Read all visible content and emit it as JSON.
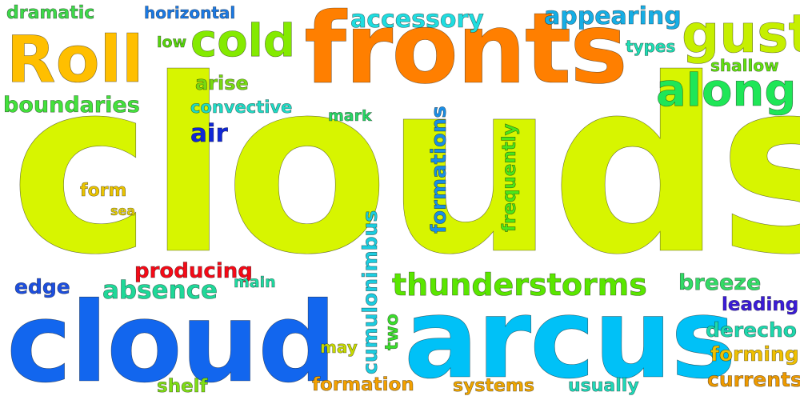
{
  "words": [
    {
      "id": "clouds",
      "text": "clouds",
      "color": "#d7f500"
    },
    {
      "id": "fronts",
      "text": "fronts",
      "color": "#ff7f00"
    },
    {
      "id": "roll",
      "text": "Roll",
      "color": "#ffbf00"
    },
    {
      "id": "cold",
      "text": "cold",
      "color": "#84ea00"
    },
    {
      "id": "gust",
      "text": "gust",
      "color": "#c6ef00"
    },
    {
      "id": "along",
      "text": "along",
      "color": "#1fe657"
    },
    {
      "id": "cloud",
      "text": "cloud",
      "color": "#1266ee"
    },
    {
      "id": "arcus",
      "text": "arcus",
      "color": "#00c1f7"
    },
    {
      "id": "thunderstorms",
      "text": "thunderstorms",
      "color": "#5ae600"
    },
    {
      "id": "accessory",
      "text": "accessory",
      "color": "#1fdde0"
    },
    {
      "id": "appearing",
      "text": "appearing",
      "color": "#16aee5"
    },
    {
      "id": "dramatic",
      "text": "dramatic",
      "color": "#3ed94a"
    },
    {
      "id": "horizontal",
      "text": "horizontal",
      "color": "#1a7ae6"
    },
    {
      "id": "low",
      "text": "low",
      "color": "#56d60a"
    },
    {
      "id": "types",
      "text": "types",
      "color": "#1ee0b5"
    },
    {
      "id": "shallow",
      "text": "shallow",
      "color": "#62e30e"
    },
    {
      "id": "arise",
      "text": "arise",
      "color": "#78d911"
    },
    {
      "id": "boundaries",
      "text": "boundaries",
      "color": "#43e23b"
    },
    {
      "id": "convective",
      "text": "convective",
      "color": "#1fdcc6"
    },
    {
      "id": "mark",
      "text": "mark",
      "color": "#27d865"
    },
    {
      "id": "air",
      "text": "air",
      "color": "#1027d8"
    },
    {
      "id": "formations",
      "text": "formations",
      "color": "#1a8ee6"
    },
    {
      "id": "frequently",
      "text": "frequently",
      "color": "#4be61b"
    },
    {
      "id": "form",
      "text": "form",
      "color": "#ebc400"
    },
    {
      "id": "sea",
      "text": "sea",
      "color": "#e8d000"
    },
    {
      "id": "cumulonimbus",
      "text": "cumulonimbus",
      "color": "#1ccde0"
    },
    {
      "id": "producing",
      "text": "producing",
      "color": "#f50a17"
    },
    {
      "id": "edge",
      "text": "edge",
      "color": "#1d4fe0"
    },
    {
      "id": "absence",
      "text": "absence",
      "color": "#1fd898"
    },
    {
      "id": "main",
      "text": "main",
      "color": "#1fdca2"
    },
    {
      "id": "breeze",
      "text": "breeze",
      "color": "#32db66"
    },
    {
      "id": "leading",
      "text": "leading",
      "color": "#3b1cd9"
    },
    {
      "id": "derecho",
      "text": "derecho",
      "color": "#1dd8ad"
    },
    {
      "id": "may",
      "text": "may",
      "color": "#c9dc00"
    },
    {
      "id": "two",
      "text": "two",
      "color": "#3bde2c"
    },
    {
      "id": "forming",
      "text": "forming",
      "color": "#efc000"
    },
    {
      "id": "currents",
      "text": "currents",
      "color": "#ee9a00"
    },
    {
      "id": "shelf",
      "text": "shelf",
      "color": "#7fde14"
    },
    {
      "id": "formation",
      "text": "formation",
      "color": "#f4a100"
    },
    {
      "id": "systems",
      "text": "systems",
      "color": "#f0a700"
    },
    {
      "id": "usually",
      "text": "usually",
      "color": "#20d9b8"
    }
  ]
}
